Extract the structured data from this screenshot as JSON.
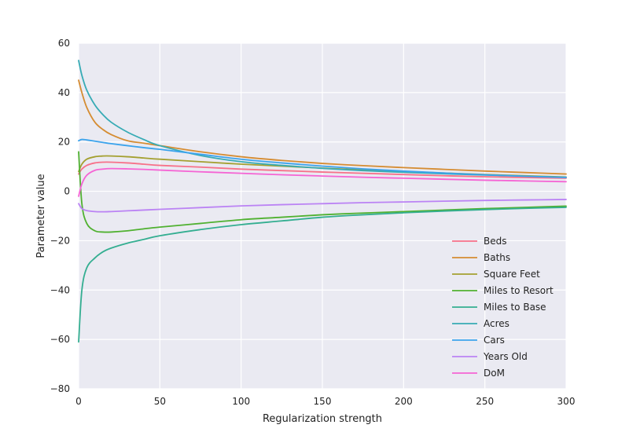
{
  "chart_data": {
    "type": "line",
    "title": "",
    "xlabel": "Regularization strength",
    "ylabel": "Parameter value",
    "xlim": [
      0,
      300
    ],
    "ylim": [
      -80,
      60
    ],
    "xticks": [
      0,
      50,
      100,
      150,
      200,
      250,
      300
    ],
    "yticks": [
      60,
      40,
      20,
      0,
      -20,
      -40,
      -60,
      -80
    ],
    "grid": true,
    "legend_position": "lower-right",
    "x": [
      0,
      2,
      5,
      10,
      15,
      20,
      30,
      40,
      50,
      75,
      100,
      125,
      150,
      175,
      200,
      225,
      250,
      275,
      300
    ],
    "series": [
      {
        "name": "Beds",
        "color": "#f77189",
        "values": [
          7,
          9,
          10.5,
          11.5,
          11.8,
          11.8,
          11.5,
          11,
          10.5,
          9.8,
          9,
          8.4,
          7.8,
          7.3,
          6.8,
          6.3,
          5.9,
          5.6,
          5.3
        ]
      },
      {
        "name": "Baths",
        "color": "#d58c32",
        "values": [
          45,
          40,
          34,
          28,
          25,
          23,
          20.5,
          19.5,
          18.5,
          16,
          14,
          12.5,
          11.3,
          10.4,
          9.6,
          8.9,
          8.2,
          7.6,
          7
        ]
      },
      {
        "name": "Square Feet",
        "color": "#a4a031",
        "values": [
          8,
          11,
          13,
          14,
          14.3,
          14.3,
          14,
          13.5,
          13,
          12,
          11,
          10.2,
          9.4,
          8.7,
          8,
          7.4,
          6.8,
          6.3,
          5.8
        ]
      },
      {
        "name": "Miles to Resort",
        "color": "#50b131",
        "values": [
          16,
          -5,
          -13,
          -16,
          -16.5,
          -16.5,
          -16,
          -15.2,
          -14.5,
          -13,
          -11.5,
          -10.5,
          -9.5,
          -8.8,
          -8.2,
          -7.6,
          -7,
          -6.5,
          -6
        ]
      },
      {
        "name": "Miles to Base",
        "color": "#34ae91",
        "values": [
          -61,
          -40,
          -31,
          -27,
          -24.5,
          -23,
          -21,
          -19.5,
          -18,
          -15.5,
          -13.5,
          -12,
          -10.5,
          -9.5,
          -8.7,
          -8,
          -7.4,
          -6.9,
          -6.5
        ]
      },
      {
        "name": "Acres",
        "color": "#37abb5",
        "values": [
          53,
          47,
          41,
          35,
          31,
          28,
          24,
          21,
          18.5,
          14.5,
          12,
          10.5,
          9.3,
          8.4,
          7.7,
          7.1,
          6.6,
          6.1,
          5.7
        ]
      },
      {
        "name": "Cars",
        "color": "#3ba3ec",
        "values": [
          20.5,
          21,
          20.8,
          20.3,
          19.8,
          19.3,
          18.5,
          17.7,
          17,
          15,
          13,
          11.5,
          10.2,
          9.1,
          8.2,
          7.4,
          6.7,
          6.1,
          5.6
        ]
      },
      {
        "name": "Years Old",
        "color": "#bb83f4",
        "values": [
          -5,
          -7,
          -7.8,
          -8.2,
          -8.3,
          -8.2,
          -7.9,
          -7.6,
          -7.3,
          -6.6,
          -5.9,
          -5.4,
          -5,
          -4.6,
          -4.3,
          -4,
          -3.7,
          -3.5,
          -3.3
        ]
      },
      {
        "name": "DoM",
        "color": "#f564d4",
        "values": [
          -2,
          3,
          6.5,
          8.5,
          9,
          9.2,
          9.1,
          8.9,
          8.6,
          7.9,
          7.3,
          6.7,
          6.2,
          5.7,
          5.3,
          4.9,
          4.5,
          4.2,
          3.9
        ]
      }
    ]
  }
}
